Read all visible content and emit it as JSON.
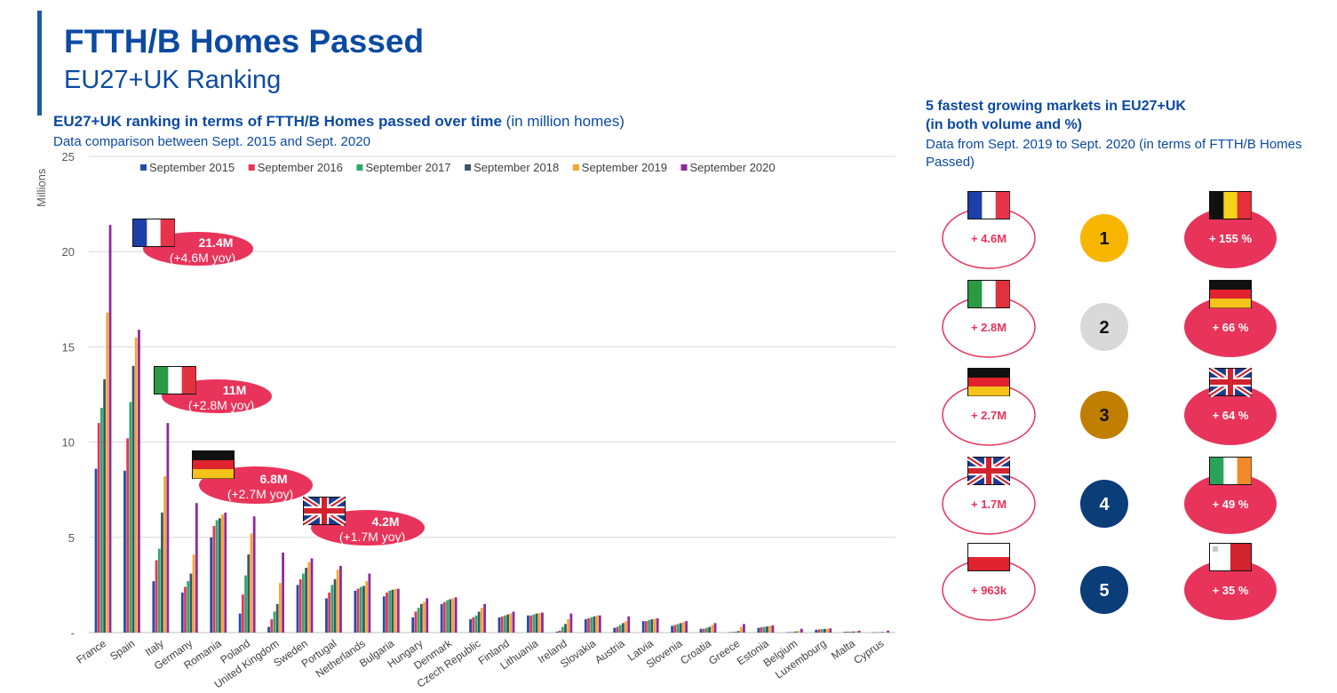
{
  "header": {
    "title": "FTTH/B Homes Passed",
    "subtitle": "EU27+UK Ranking"
  },
  "chart_header": {
    "title_bold": "EU27+UK ranking in terms of FTTH/B Homes passed over time",
    "title_unit": " (in million homes)",
    "subtitle": "Data comparison between Sept. 2015 and Sept. 2020"
  },
  "side_panel": {
    "title_line1": "5 fastest growing markets in EU27+UK",
    "title_line2": "(in both volume and %)",
    "subtitle": "Data from Sept. 2019 to Sept. 2020 (in terms of FTTH/B Homes Passed)",
    "ranks": [
      {
        "rank": "1",
        "rank_color": "#f7b500",
        "rank_text_color": "#111111",
        "volume": "+ 4.6M",
        "volume_flag": "fr-flag",
        "percent": "+ 155 %",
        "percent_flag": "be-flag"
      },
      {
        "rank": "2",
        "rank_color": "#d9d9d9",
        "rank_text_color": "#111111",
        "volume": "+ 2.8M",
        "volume_flag": "it-flag",
        "percent": "+ 66 %",
        "percent_flag": "de-flag"
      },
      {
        "rank": "3",
        "rank_color": "#c07f00",
        "rank_text_color": "#111111",
        "volume": "+ 2.7M",
        "volume_flag": "de-flag",
        "percent": "+ 64 %",
        "percent_flag": "uk-flag"
      },
      {
        "rank": "4",
        "rank_color": "#0b3d78",
        "rank_text_color": "#ffffff",
        "volume": "+ 1.7M",
        "volume_flag": "uk-flag",
        "percent": "+ 49 %",
        "percent_flag": "ie-flag"
      },
      {
        "rank": "5",
        "rank_color": "#0b3d78",
        "rank_text_color": "#ffffff",
        "volume": "+ 963k",
        "volume_flag": "pl-flag",
        "percent": "+ 35 %",
        "percent_flag": "mt-flag"
      }
    ]
  },
  "callouts": [
    {
      "country": "France",
      "flag": "fr-flag",
      "value": "21.4M",
      "change": "(+4.6M yoy)"
    },
    {
      "country": "Italy",
      "flag": "it-flag",
      "value": "11M",
      "change": "(+2.8M yoy)"
    },
    {
      "country": "Germany",
      "flag": "de-flag",
      "value": "6.8M",
      "change": "(+2.7M yoy)"
    },
    {
      "country": "United Kingdom",
      "flag": "uk-flag",
      "value": "4.2M",
      "change": "(+1.7M yoy)"
    }
  ],
  "colors": {
    "brand_blue": "#0b4aa2",
    "callout_red": "#e8345a",
    "ring_red": "#e8345a"
  },
  "chart_data": {
    "type": "bar",
    "ylabel": "Millions",
    "ylim": [
      0,
      25
    ],
    "yticks": [
      "-",
      "5",
      "10",
      "15",
      "20",
      "25"
    ],
    "grid": true,
    "legend_position": "top",
    "categories": [
      "France",
      "Spain",
      "Italy",
      "Germany",
      "Romania",
      "Poland",
      "United Kingdom",
      "Sweden",
      "Portugal",
      "Netherlands",
      "Bulgaria",
      "Hungary",
      "Denmark",
      "Czech Republic",
      "Finland",
      "Lithuania",
      "Ireland",
      "Slovakia",
      "Austria",
      "Latvia",
      "Slovenia",
      "Croatia",
      "Greece",
      "Estonia",
      "Belgium",
      "Luxembourg",
      "Malta",
      "Cyprus"
    ],
    "series": [
      {
        "name": "September 2015",
        "color": "#1f4fa8",
        "values": [
          8.6,
          8.5,
          2.7,
          2.1,
          5.0,
          1.0,
          0.3,
          2.5,
          1.8,
          2.2,
          1.9,
          0.8,
          1.5,
          0.7,
          0.8,
          0.9,
          0.05,
          0.7,
          0.25,
          0.6,
          0.35,
          0.2,
          0.02,
          0.25,
          0.02,
          0.15,
          0.04,
          0.01
        ]
      },
      {
        "name": "September 2016",
        "color": "#e8345a",
        "values": [
          11.0,
          10.2,
          3.8,
          2.4,
          5.6,
          2.0,
          0.7,
          2.8,
          2.1,
          2.3,
          2.1,
          1.1,
          1.6,
          0.8,
          0.85,
          0.9,
          0.1,
          0.75,
          0.3,
          0.6,
          0.4,
          0.2,
          0.03,
          0.28,
          0.03,
          0.17,
          0.05,
          0.02
        ]
      },
      {
        "name": "September 2017",
        "color": "#2eaa6e",
        "values": [
          11.8,
          12.1,
          4.4,
          2.7,
          5.9,
          3.0,
          1.1,
          3.1,
          2.5,
          2.4,
          2.2,
          1.3,
          1.7,
          0.9,
          0.9,
          0.95,
          0.3,
          0.8,
          0.4,
          0.65,
          0.45,
          0.25,
          0.05,
          0.3,
          0.04,
          0.18,
          0.05,
          0.02
        ]
      },
      {
        "name": "September 2018",
        "color": "#3f5468",
        "values": [
          13.3,
          14.0,
          6.3,
          3.1,
          6.0,
          4.1,
          1.5,
          3.4,
          2.8,
          2.45,
          2.25,
          1.5,
          1.75,
          1.1,
          0.95,
          1.0,
          0.45,
          0.85,
          0.5,
          0.7,
          0.5,
          0.3,
          0.08,
          0.32,
          0.06,
          0.19,
          0.06,
          0.03
        ]
      },
      {
        "name": "September 2019",
        "color": "#f7a52c",
        "values": [
          16.8,
          15.5,
          8.2,
          4.1,
          6.2,
          5.2,
          2.6,
          3.7,
          3.3,
          2.7,
          2.3,
          1.6,
          1.8,
          1.3,
          1.0,
          1.02,
          0.7,
          0.9,
          0.6,
          0.72,
          0.55,
          0.4,
          0.3,
          0.35,
          0.08,
          0.2,
          0.07,
          0.03
        ]
      },
      {
        "name": "September 2020",
        "color": "#8e2a9e",
        "values": [
          21.4,
          15.9,
          11.0,
          6.8,
          6.3,
          6.1,
          4.2,
          3.9,
          3.5,
          3.1,
          2.3,
          1.8,
          1.85,
          1.5,
          1.1,
          1.05,
          1.0,
          0.9,
          0.85,
          0.75,
          0.6,
          0.5,
          0.45,
          0.38,
          0.2,
          0.22,
          0.1,
          0.1
        ]
      }
    ]
  }
}
